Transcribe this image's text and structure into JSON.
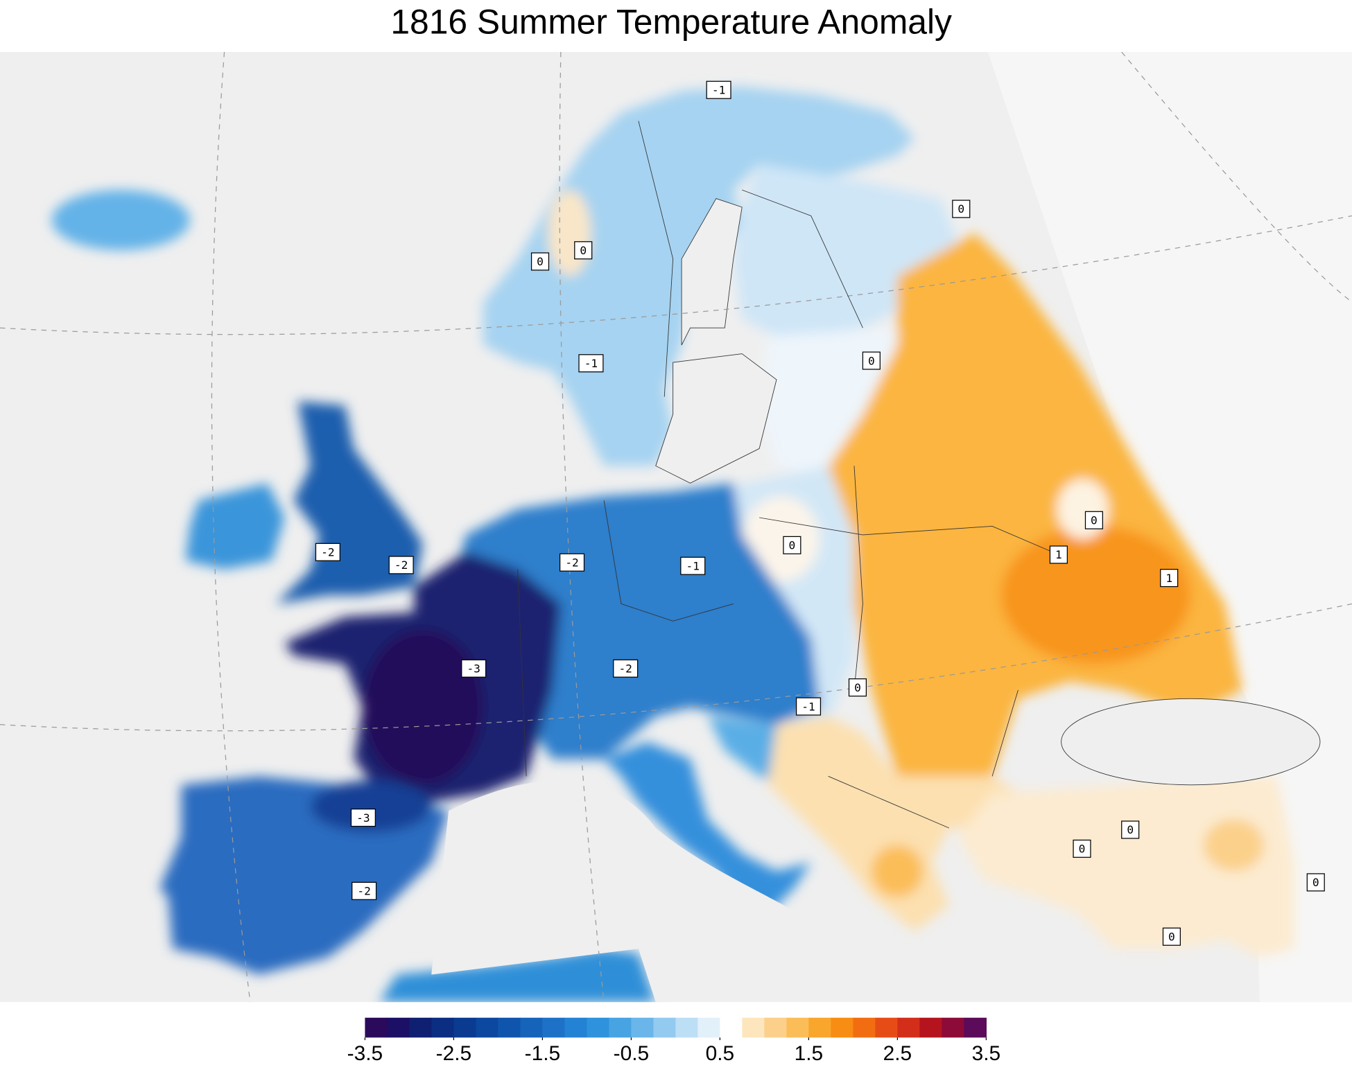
{
  "title": "1816 Summer Temperature Anomaly",
  "contour_labels": [
    -1,
    0,
    0,
    0,
    -1,
    0,
    -2,
    -2,
    -2,
    -1,
    0,
    0,
    1,
    1,
    -3,
    -2,
    0,
    -1,
    -3,
    0,
    0,
    -2,
    0,
    0
  ],
  "colorbar": {
    "lim": [
      -3.5,
      3.5
    ],
    "ticks": [
      -3.5,
      -2.5,
      -1.5,
      -0.5,
      0.5,
      1.5,
      2.5,
      3.5
    ],
    "colors": [
      "#2b0a5c",
      "#1c0f66",
      "#0f1f72",
      "#0b2d82",
      "#0a3b91",
      "#0c489f",
      "#1055ad",
      "#1663ba",
      "#1d72c8",
      "#2482d4",
      "#2f92dc",
      "#48a3e3",
      "#6ab5ea",
      "#93caf0",
      "#bcdff6",
      "#e2f0fa",
      "#ffffff",
      "#fde6bd",
      "#fcd08a",
      "#fbbd58",
      "#f9a62c",
      "#f78d12",
      "#f26d12",
      "#e64d16",
      "#d22e1a",
      "#b5141f",
      "#8d0b38",
      "#5c0a5a"
    ]
  }
}
